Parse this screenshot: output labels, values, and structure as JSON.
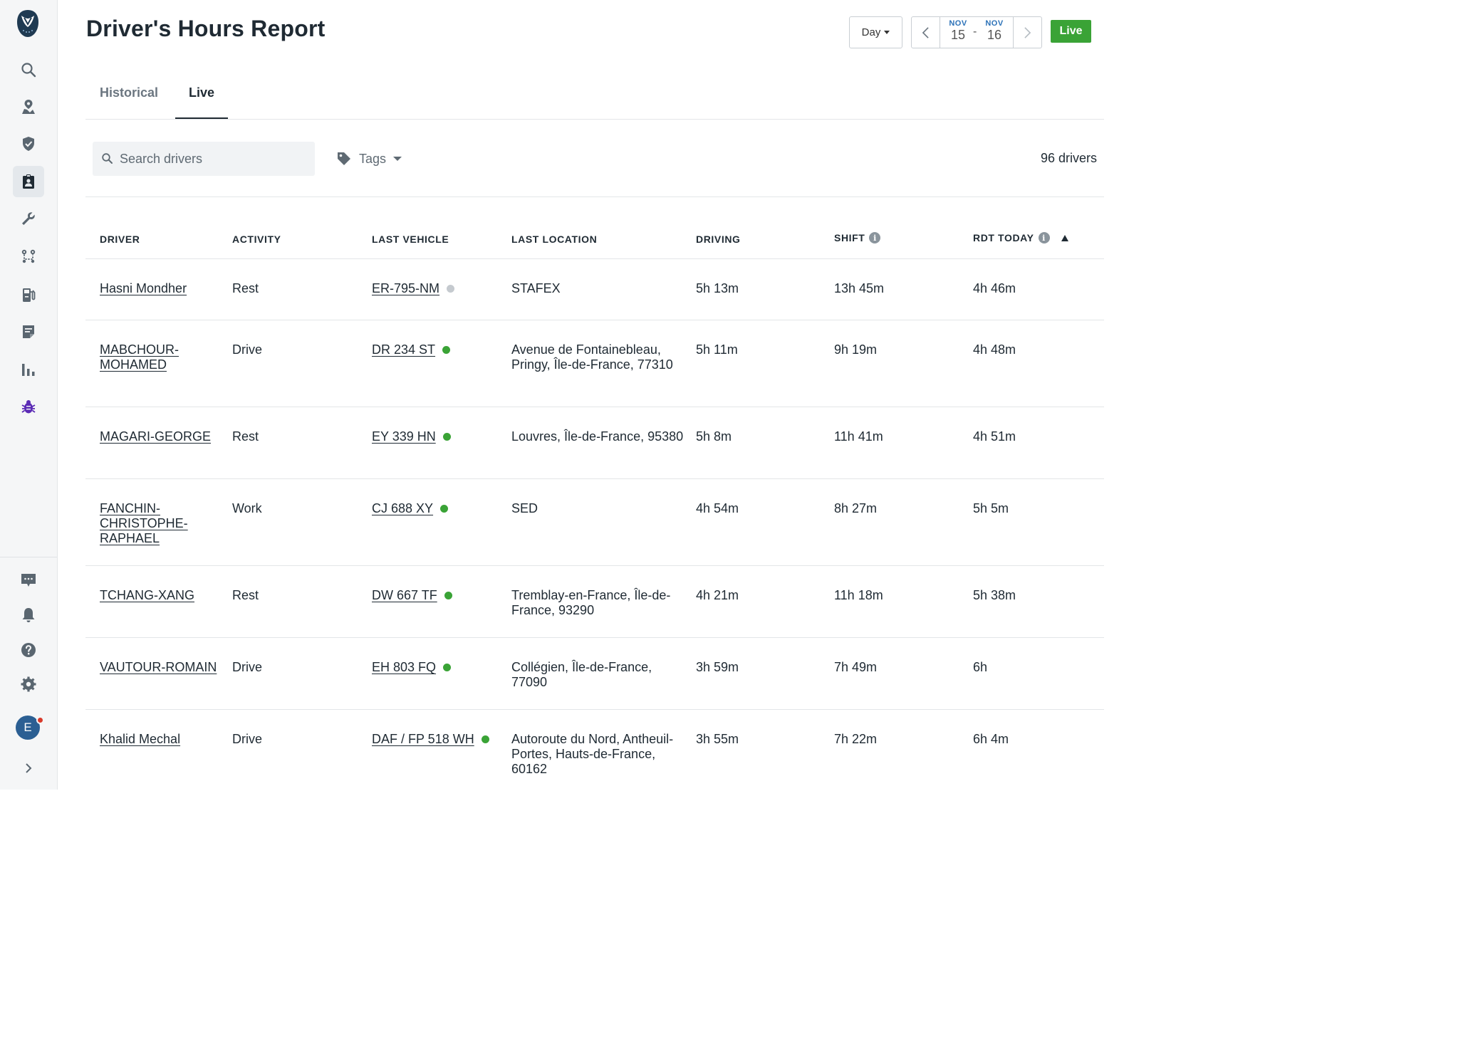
{
  "header": {
    "title": "Driver's Hours Report",
    "period_select": "Day",
    "date_from": {
      "month": "NOV",
      "day": "15"
    },
    "date_sep": "-",
    "date_to": {
      "month": "NOV",
      "day": "16"
    },
    "live_button": "Live"
  },
  "tabs": {
    "historical": "Historical",
    "live": "Live",
    "active": "live"
  },
  "filters": {
    "search_placeholder": "Search drivers",
    "tags_label": "Tags",
    "driver_count": "96 drivers"
  },
  "table": {
    "columns": {
      "driver": "DRIVER",
      "activity": "ACTIVITY",
      "vehicle": "LAST VEHICLE",
      "location": "LAST LOCATION",
      "driving": "DRIVING",
      "shift": "SHIFT",
      "rdt": "RDT TODAY"
    },
    "sort": {
      "column": "rdt",
      "direction": "ascending"
    },
    "rows": [
      {
        "driver": "Hasni Mondher",
        "activity": "Rest",
        "vehicle": "ER-795-NM",
        "vehicle_status": "offline",
        "location": "STAFEX",
        "driving": "5h 13m",
        "shift": "13h 45m",
        "rdt": "4h 46m"
      },
      {
        "driver": "MABCHOUR-MOHAMED",
        "activity": "Drive",
        "vehicle": "DR 234 ST",
        "vehicle_status": "online",
        "location": "Avenue de Fontainebleau, Pringy, Île-de-France, 77310",
        "driving": "5h 11m",
        "shift": "9h 19m",
        "rdt": "4h 48m"
      },
      {
        "driver": "MAGARI-GEORGE",
        "activity": "Rest",
        "vehicle": "EY 339 HN",
        "vehicle_status": "online",
        "location": "Louvres, Île-de-France, 95380",
        "driving": "5h 8m",
        "shift": "11h 41m",
        "rdt": "4h 51m"
      },
      {
        "driver": "FANCHIN-CHRISTOPHE-RAPHAEL",
        "activity": "Work",
        "vehicle": "CJ 688 XY",
        "vehicle_status": "online",
        "location": "SED",
        "driving": "4h 54m",
        "shift": "8h 27m",
        "rdt": "5h 5m"
      },
      {
        "driver": "TCHANG-XANG",
        "activity": "Rest",
        "vehicle": "DW 667 TF",
        "vehicle_status": "online",
        "location": "Tremblay-en-France, Île-de-France, 93290",
        "driving": "4h 21m",
        "shift": "11h 18m",
        "rdt": "5h 38m"
      },
      {
        "driver": "VAUTOUR-ROMAIN",
        "activity": "Drive",
        "vehicle": "EH 803 FQ",
        "vehicle_status": "online",
        "location": "Collégien, Île-de-France, 77090",
        "driving": "3h 59m",
        "shift": "7h 49m",
        "rdt": "6h"
      },
      {
        "driver": "Khalid Mechal",
        "activity": "Drive",
        "vehicle": "DAF / FP 518 WH",
        "vehicle_status": "online",
        "location": "Autoroute du Nord, Antheuil-Portes, Hauts-de-France, 60162",
        "driving": "3h 55m",
        "shift": "7h 22m",
        "rdt": "6h 4m"
      }
    ]
  },
  "status_colors": {
    "online": "#3aa336",
    "offline": "#c5cacf"
  },
  "user": {
    "initial": "E"
  },
  "sidebar": {
    "icons": [
      "search-icon",
      "map-pin-icon",
      "shield-icon",
      "clipboard-driver-icon",
      "wrench-icon",
      "route-icon",
      "fuel-icon",
      "document-icon",
      "bar-chart-icon",
      "bug-icon"
    ],
    "footer_icons": [
      "chat-icon",
      "bell-icon",
      "help-icon",
      "gear-icon"
    ]
  }
}
